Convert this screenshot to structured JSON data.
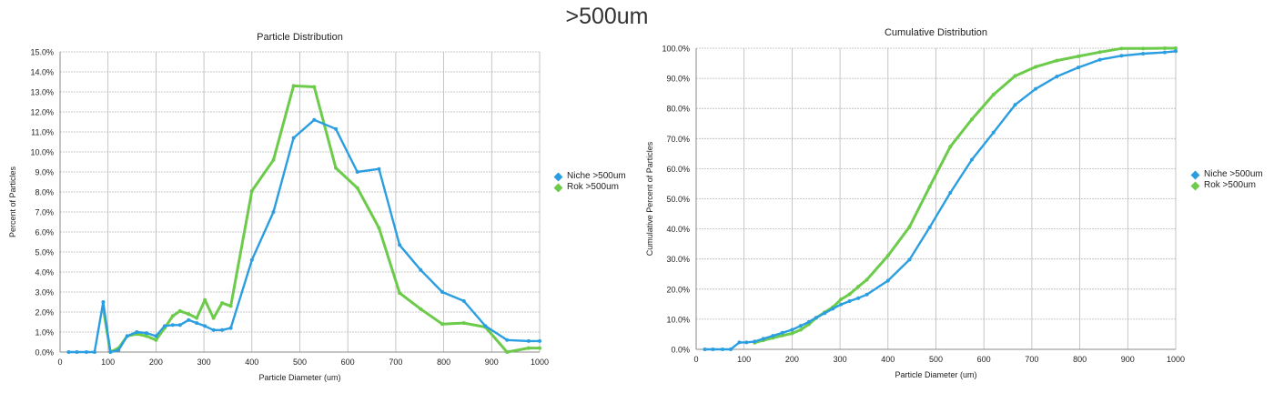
{
  "page_title": ">500um",
  "colors": {
    "niche": "#2a9ee0",
    "rok": "#6ccb4a",
    "grid": "#b8b8b8",
    "axis": "#999999"
  },
  "chart_data": [
    {
      "type": "line",
      "title": "Particle Distribution",
      "xlabel": "Particle Diameter (um)",
      "ylabel": "Percent of Particles",
      "xlim": [
        0,
        1000
      ],
      "ylim": [
        0,
        15
      ],
      "x_ticks": [
        "0",
        "100",
        "200",
        "300",
        "400",
        "500",
        "600",
        "700",
        "800",
        "900",
        "1000"
      ],
      "y_ticks": [
        "0.0%",
        "1.0%",
        "2.0%",
        "3.0%",
        "4.0%",
        "5.0%",
        "6.0%",
        "7.0%",
        "8.0%",
        "9.0%",
        "10.0%",
        "11.0%",
        "12.0%",
        "13.0%",
        "14.0%",
        "15.0%"
      ],
      "grid": true,
      "legend_position": "right",
      "series": [
        {
          "name": "Niche >500um",
          "color": "#2a9ee0",
          "points": [
            [
              18,
              0
            ],
            [
              35,
              0
            ],
            [
              55,
              0
            ],
            [
              72,
              0
            ],
            [
              90,
              2.5
            ],
            [
              105,
              0
            ],
            [
              122,
              0.1
            ],
            [
              140,
              0.8
            ],
            [
              160,
              1.0
            ],
            [
              180,
              0.95
            ],
            [
              200,
              0.8
            ],
            [
              218,
              1.3
            ],
            [
              235,
              1.35
            ],
            [
              250,
              1.35
            ],
            [
              268,
              1.6
            ],
            [
              285,
              1.45
            ],
            [
              302,
              1.3
            ],
            [
              320,
              1.1
            ],
            [
              338,
              1.1
            ],
            [
              356,
              1.2
            ],
            [
              400,
              4.6
            ],
            [
              445,
              7.0
            ],
            [
              487,
              10.7
            ],
            [
              530,
              11.6
            ],
            [
              575,
              11.15
            ],
            [
              620,
              9.0
            ],
            [
              665,
              9.15
            ],
            [
              708,
              5.35
            ],
            [
              752,
              4.1
            ],
            [
              797,
              3.0
            ],
            [
              842,
              2.55
            ],
            [
              887,
              1.3
            ],
            [
              932,
              0.6
            ],
            [
              977,
              0.55
            ],
            [
              1000,
              0.55
            ]
          ]
        },
        {
          "name": "Rok >500um",
          "color": "#6ccb4a",
          "points": [
            [
              90,
              2.2
            ],
            [
              105,
              0
            ],
            [
              122,
              0.2
            ],
            [
              140,
              0.8
            ],
            [
              160,
              0.9
            ],
            [
              180,
              0.8
            ],
            [
              200,
              0.6
            ],
            [
              218,
              1.2
            ],
            [
              235,
              1.8
            ],
            [
              250,
              2.05
            ],
            [
              268,
              1.9
            ],
            [
              285,
              1.7
            ],
            [
              302,
              2.6
            ],
            [
              320,
              1.7
            ],
            [
              338,
              2.45
            ],
            [
              356,
              2.3
            ],
            [
              400,
              8.05
            ],
            [
              445,
              9.6
            ],
            [
              487,
              13.3
            ],
            [
              530,
              13.25
            ],
            [
              575,
              9.2
            ],
            [
              620,
              8.2
            ],
            [
              665,
              6.2
            ],
            [
              708,
              2.95
            ],
            [
              752,
              2.15
            ],
            [
              797,
              1.4
            ],
            [
              842,
              1.45
            ],
            [
              887,
              1.25
            ],
            [
              932,
              0.0
            ],
            [
              977,
              0.2
            ],
            [
              1000,
              0.2
            ]
          ]
        }
      ]
    },
    {
      "type": "line",
      "title": "Cumulative Distribution",
      "xlabel": "Particle Diameter (um)",
      "ylabel": "Cumulative Percent of Particles",
      "xlim": [
        0,
        1000
      ],
      "ylim": [
        0,
        100
      ],
      "x_ticks": [
        "0",
        "100",
        "200",
        "300",
        "400",
        "500",
        "600",
        "700",
        "800",
        "900",
        "1000"
      ],
      "y_ticks": [
        "0.0%",
        "10.0%",
        "20.0%",
        "30.0%",
        "40.0%",
        "50.0%",
        "60.0%",
        "70.0%",
        "80.0%",
        "90.0%",
        "100.0%"
      ],
      "grid": true,
      "legend_position": "right",
      "series": [
        {
          "name": "Niche >500um",
          "color": "#2a9ee0",
          "points": [
            [
              18,
              0
            ],
            [
              35,
              0
            ],
            [
              55,
              0
            ],
            [
              72,
              0
            ],
            [
              90,
              2.3
            ],
            [
              105,
              2.3
            ],
            [
              122,
              2.6
            ],
            [
              140,
              3.5
            ],
            [
              160,
              4.5
            ],
            [
              180,
              5.5
            ],
            [
              200,
              6.5
            ],
            [
              218,
              7.8
            ],
            [
              235,
              9.1
            ],
            [
              250,
              10.5
            ],
            [
              268,
              12.0
            ],
            [
              285,
              13.5
            ],
            [
              302,
              14.9
            ],
            [
              320,
              16.0
            ],
            [
              338,
              17.0
            ],
            [
              356,
              18.2
            ],
            [
              400,
              22.8
            ],
            [
              445,
              29.8
            ],
            [
              487,
              40.5
            ],
            [
              530,
              52.0
            ],
            [
              575,
              63.0
            ],
            [
              620,
              72.0
            ],
            [
              665,
              81.2
            ],
            [
              708,
              86.5
            ],
            [
              752,
              90.6
            ],
            [
              797,
              93.6
            ],
            [
              842,
              96.2
            ],
            [
              887,
              97.5
            ],
            [
              932,
              98.2
            ],
            [
              977,
              98.6
            ],
            [
              1000,
              99.0
            ]
          ]
        },
        {
          "name": "Rok >500um",
          "color": "#6ccb4a",
          "points": [
            [
              122,
              2.2
            ],
            [
              140,
              3.0
            ],
            [
              160,
              3.8
            ],
            [
              180,
              4.6
            ],
            [
              200,
              5.3
            ],
            [
              218,
              6.5
            ],
            [
              235,
              8.3
            ],
            [
              250,
              10.4
            ],
            [
              268,
              12.3
            ],
            [
              285,
              14.0
            ],
            [
              302,
              16.6
            ],
            [
              320,
              18.3
            ],
            [
              338,
              20.8
            ],
            [
              356,
              23.1
            ],
            [
              400,
              31.1
            ],
            [
              445,
              40.7
            ],
            [
              487,
              54.0
            ],
            [
              530,
              67.3
            ],
            [
              575,
              76.4
            ],
            [
              620,
              84.6
            ],
            [
              665,
              90.8
            ],
            [
              708,
              93.8
            ],
            [
              752,
              95.9
            ],
            [
              797,
              97.3
            ],
            [
              842,
              98.7
            ],
            [
              887,
              99.9
            ],
            [
              932,
              99.9
            ],
            [
              977,
              100.0
            ],
            [
              1000,
              100.0
            ]
          ]
        }
      ]
    }
  ]
}
